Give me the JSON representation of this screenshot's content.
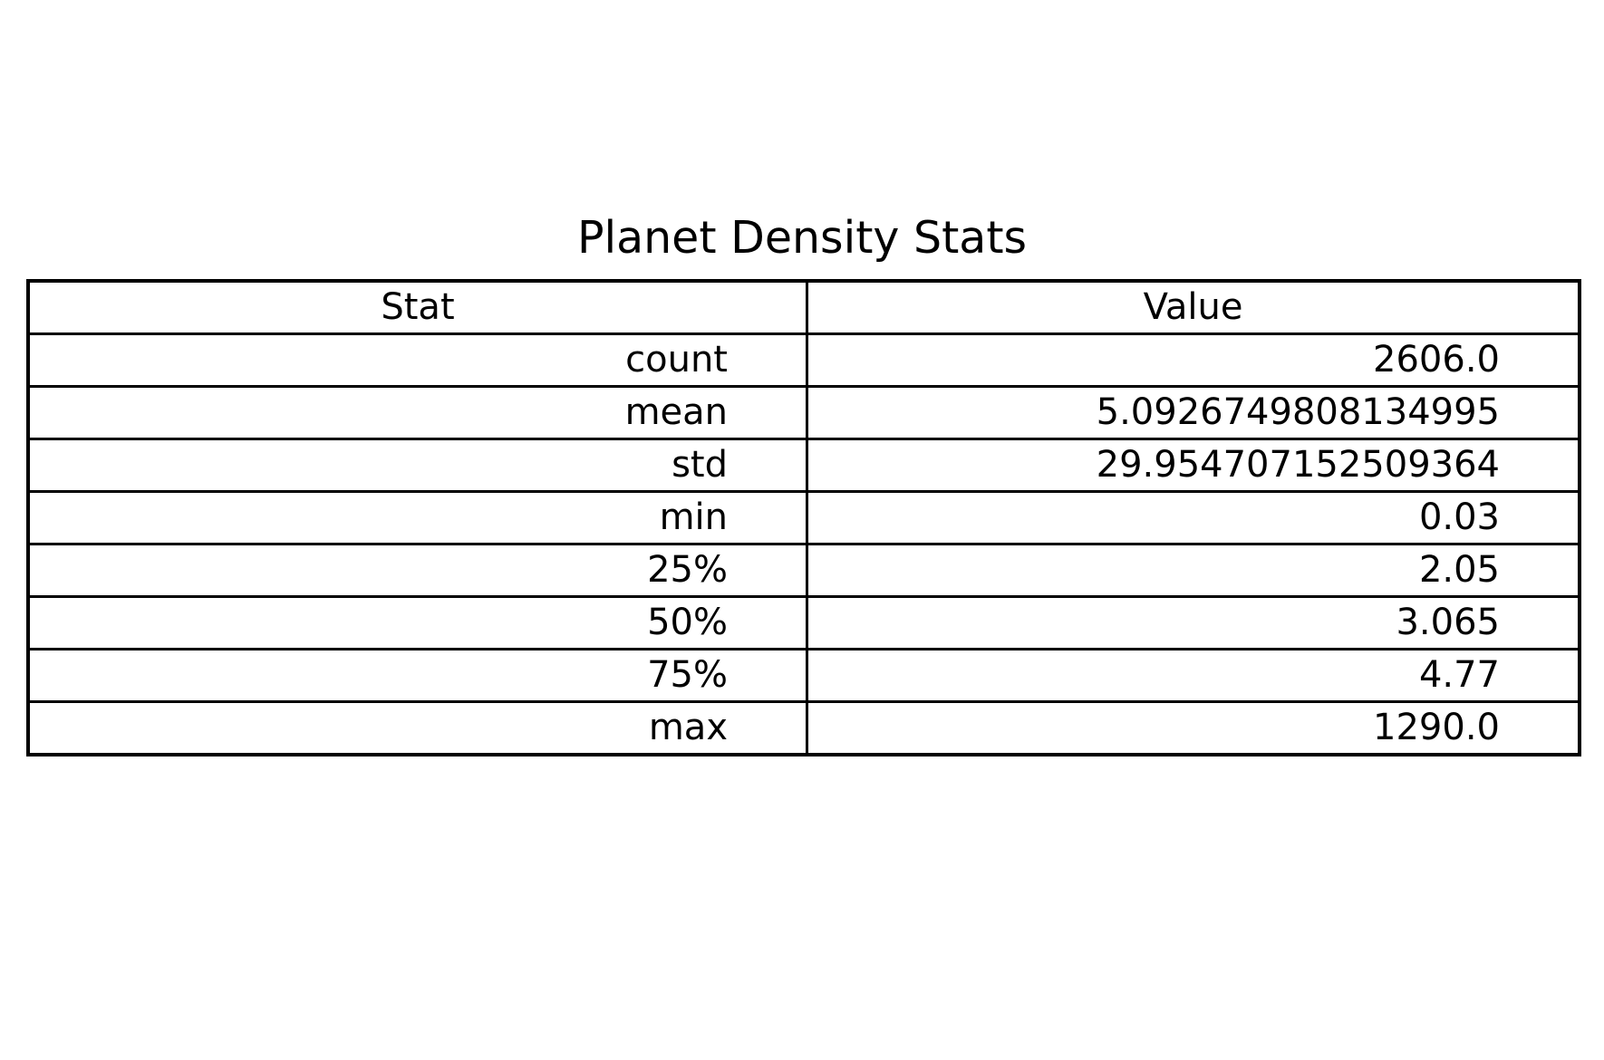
{
  "chart_data": {
    "type": "table",
    "title": "Planet Density Stats",
    "columns": [
      "Stat",
      "Value"
    ],
    "rows": [
      [
        "count",
        "2606.0"
      ],
      [
        "mean",
        "5.0926749808134995"
      ],
      [
        "std",
        "29.954707152509364"
      ],
      [
        "min",
        "0.03"
      ],
      [
        "25%",
        "2.05"
      ],
      [
        "50%",
        "3.065"
      ],
      [
        "75%",
        "4.77"
      ],
      [
        "max",
        "1290.0"
      ]
    ]
  }
}
